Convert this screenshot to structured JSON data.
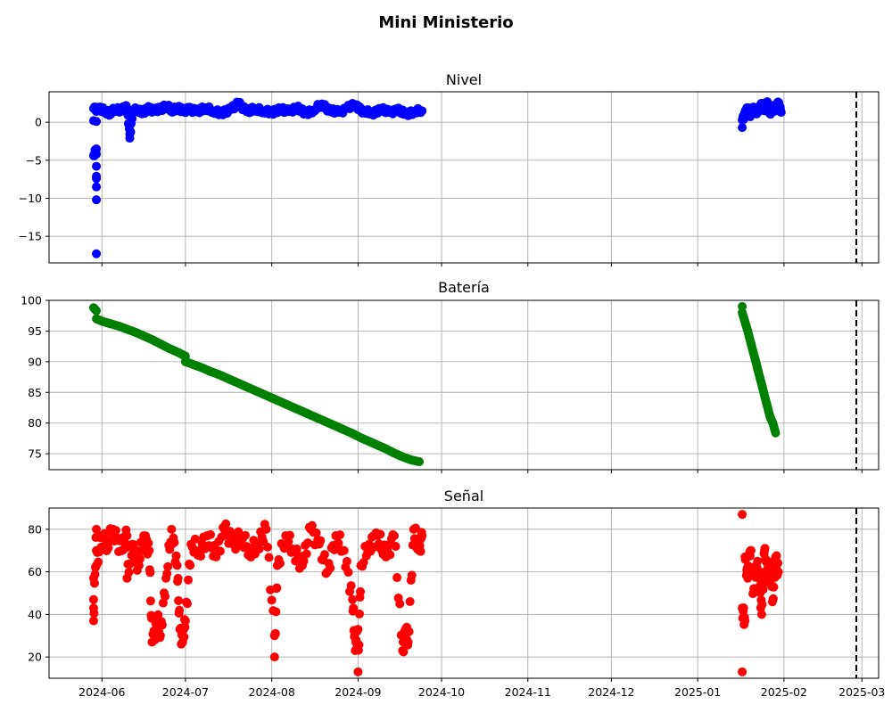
{
  "figure": {
    "title": "Mini Ministerio"
  },
  "chart_data": [
    {
      "type": "scatter",
      "title": "Nivel",
      "color": "#0000ff",
      "xlim": [
        "2024-05-13",
        "2025-03-07"
      ],
      "ylim": [
        -18.5,
        4.0
      ],
      "yticks": [
        0,
        -5,
        -10,
        -15
      ],
      "ytick_labels": [
        "0",
        "−5",
        "−10",
        "−15"
      ],
      "xticks": [
        "2024-06-01",
        "2024-07-01",
        "2024-08-01",
        "2024-09-01",
        "2024-10-01",
        "2024-11-01",
        "2024-12-01",
        "2025-01-01",
        "2025-02-01",
        "2025-03-01"
      ],
      "xtick_labels": [],
      "grid": true,
      "reference_line": {
        "x": "2025-02-27",
        "style": "dashed",
        "color": "#000000"
      },
      "points": [
        [
          "2024-05-29",
          0.2
        ],
        [
          "2024-05-29",
          -4.4
        ],
        [
          "2024-05-30",
          -3.5
        ],
        [
          "2024-05-30",
          -4.2
        ],
        [
          "2024-05-30",
          -5.8
        ],
        [
          "2024-05-30",
          -7.1
        ],
        [
          "2024-05-30",
          -7.4
        ],
        [
          "2024-05-30",
          -8.5
        ],
        [
          "2024-05-30",
          -10.2
        ],
        [
          "2024-05-30",
          -17.3
        ],
        [
          "2024-05-30",
          0.1
        ],
        [
          "2024-05-29",
          1.8
        ],
        [
          "2024-05-31",
          1.7
        ],
        [
          "2024-06-02",
          1.5
        ],
        [
          "2024-06-04",
          1.2
        ],
        [
          "2024-06-06",
          1.8
        ],
        [
          "2024-06-08",
          1.6
        ],
        [
          "2024-06-10",
          1.9
        ],
        [
          "2024-06-11",
          -1.6
        ],
        [
          "2024-06-11",
          -2.1
        ],
        [
          "2024-06-12",
          1.4
        ],
        [
          "2024-06-14",
          1.7
        ],
        [
          "2024-06-16",
          1.3
        ],
        [
          "2024-06-18",
          1.8
        ],
        [
          "2024-06-20",
          1.5
        ],
        [
          "2024-06-22",
          1.7
        ],
        [
          "2024-06-24",
          2.2
        ],
        [
          "2024-06-26",
          1.6
        ],
        [
          "2024-06-28",
          1.9
        ],
        [
          "2024-06-30",
          1.5
        ],
        [
          "2024-07-02",
          1.7
        ],
        [
          "2024-07-05",
          1.4
        ],
        [
          "2024-07-08",
          1.9
        ],
        [
          "2024-07-11",
          1.5
        ],
        [
          "2024-07-14",
          1.2
        ],
        [
          "2024-07-17",
          1.6
        ],
        [
          "2024-07-20",
          2.5
        ],
        [
          "2024-07-23",
          1.4
        ],
        [
          "2024-07-26",
          1.8
        ],
        [
          "2024-07-29",
          1.5
        ],
        [
          "2024-08-01",
          1.3
        ],
        [
          "2024-08-04",
          1.7
        ],
        [
          "2024-08-07",
          1.4
        ],
        [
          "2024-08-10",
          1.9
        ],
        [
          "2024-08-13",
          1.2
        ],
        [
          "2024-08-16",
          1.6
        ],
        [
          "2024-08-19",
          2.4
        ],
        [
          "2024-08-22",
          1.5
        ],
        [
          "2024-08-25",
          1.3
        ],
        [
          "2024-08-28",
          1.8
        ],
        [
          "2024-08-31",
          2.3
        ],
        [
          "2024-09-03",
          1.4
        ],
        [
          "2024-09-06",
          1.2
        ],
        [
          "2024-09-09",
          1.7
        ],
        [
          "2024-09-12",
          1.3
        ],
        [
          "2024-09-15",
          1.6
        ],
        [
          "2024-09-18",
          1.1
        ],
        [
          "2024-09-21",
          1.4
        ],
        [
          "2024-09-24",
          1.5
        ],
        [
          "2025-01-17",
          -0.7
        ],
        [
          "2025-01-17",
          0.3
        ],
        [
          "2025-01-18",
          1.1
        ],
        [
          "2025-01-19",
          1.8
        ],
        [
          "2025-01-20",
          0.9
        ],
        [
          "2025-01-21",
          2.0
        ],
        [
          "2025-01-22",
          1.3
        ],
        [
          "2025-01-23",
          1.7
        ],
        [
          "2025-01-24",
          2.3
        ],
        [
          "2025-01-25",
          1.5
        ],
        [
          "2025-01-26",
          2.7
        ],
        [
          "2025-01-27",
          1.2
        ],
        [
          "2025-01-28",
          2.1
        ],
        [
          "2025-01-29",
          1.6
        ],
        [
          "2025-01-30",
          2.5
        ],
        [
          "2025-01-31",
          1.3
        ]
      ]
    },
    {
      "type": "scatter",
      "title": "Batería",
      "color": "#008000",
      "xlim": [
        "2024-05-13",
        "2025-03-07"
      ],
      "ylim": [
        72.4,
        100.0
      ],
      "yticks": [
        100,
        95,
        90,
        85,
        80,
        75
      ],
      "ytick_labels": [
        "100",
        "95",
        "90",
        "85",
        "80",
        "75"
      ],
      "xticks": [
        "2024-06-01",
        "2024-07-01",
        "2024-08-01",
        "2024-09-01",
        "2024-10-01",
        "2024-11-01",
        "2024-12-01",
        "2025-01-01",
        "2025-02-01",
        "2025-03-01"
      ],
      "xtick_labels": [],
      "grid": true,
      "reference_line": {
        "x": "2025-02-27",
        "style": "dashed",
        "color": "#000000"
      },
      "points": [
        [
          "2024-05-29",
          98.8
        ],
        [
          "2024-05-30",
          98.3
        ],
        [
          "2024-05-30",
          97.0
        ],
        [
          "2024-06-01",
          96.6
        ],
        [
          "2024-06-04",
          96.2
        ],
        [
          "2024-06-07",
          95.8
        ],
        [
          "2024-06-10",
          95.3
        ],
        [
          "2024-06-13",
          94.8
        ],
        [
          "2024-06-16",
          94.2
        ],
        [
          "2024-06-19",
          93.6
        ],
        [
          "2024-06-22",
          92.9
        ],
        [
          "2024-06-25",
          92.2
        ],
        [
          "2024-06-28",
          91.6
        ],
        [
          "2024-07-01",
          90.9
        ],
        [
          "2024-07-01",
          90.0
        ],
        [
          "2024-07-04",
          89.5
        ],
        [
          "2024-07-07",
          89.0
        ],
        [
          "2024-07-10",
          88.4
        ],
        [
          "2024-07-13",
          87.9
        ],
        [
          "2024-07-16",
          87.3
        ],
        [
          "2024-07-19",
          86.7
        ],
        [
          "2024-07-22",
          86.1
        ],
        [
          "2024-07-25",
          85.5
        ],
        [
          "2024-07-28",
          84.9
        ],
        [
          "2024-07-31",
          84.3
        ],
        [
          "2024-08-03",
          83.7
        ],
        [
          "2024-08-06",
          83.1
        ],
        [
          "2024-08-09",
          82.5
        ],
        [
          "2024-08-12",
          81.9
        ],
        [
          "2024-08-15",
          81.3
        ],
        [
          "2024-08-18",
          80.7
        ],
        [
          "2024-08-21",
          80.1
        ],
        [
          "2024-08-24",
          79.5
        ],
        [
          "2024-08-27",
          78.9
        ],
        [
          "2024-08-30",
          78.3
        ],
        [
          "2024-09-02",
          77.6
        ],
        [
          "2024-09-05",
          77.0
        ],
        [
          "2024-09-08",
          76.4
        ],
        [
          "2024-09-11",
          75.8
        ],
        [
          "2024-09-14",
          75.1
        ],
        [
          "2024-09-17",
          74.5
        ],
        [
          "2024-09-20",
          74.0
        ],
        [
          "2024-09-23",
          73.7
        ],
        [
          "2025-01-17",
          99.0
        ],
        [
          "2025-01-17",
          98.0
        ],
        [
          "2025-01-18",
          96.5
        ],
        [
          "2025-01-19",
          95.0
        ],
        [
          "2025-01-20",
          93.2
        ],
        [
          "2025-01-21",
          91.5
        ],
        [
          "2025-01-22",
          89.8
        ],
        [
          "2025-01-23",
          88.0
        ],
        [
          "2025-01-24",
          86.3
        ],
        [
          "2025-01-25",
          84.5
        ],
        [
          "2025-01-26",
          82.8
        ],
        [
          "2025-01-27",
          81.0
        ],
        [
          "2025-01-28",
          80.0
        ],
        [
          "2025-01-29",
          78.4
        ]
      ]
    },
    {
      "type": "scatter",
      "title": "Señal",
      "color": "#ff0000",
      "xlim": [
        "2024-05-13",
        "2025-03-07"
      ],
      "ylim": [
        10.0,
        90.0
      ],
      "yticks": [
        80,
        60,
        40,
        20
      ],
      "ytick_labels": [
        "80",
        "60",
        "40",
        "20"
      ],
      "xticks": [
        "2024-06-01",
        "2024-07-01",
        "2024-08-01",
        "2024-09-01",
        "2024-10-01",
        "2024-11-01",
        "2024-12-01",
        "2025-01-01",
        "2025-02-01",
        "2025-03-01"
      ],
      "xtick_labels": [
        "2024-06",
        "2024-07",
        "2024-08",
        "2024-09",
        "2024-10",
        "2024-11",
        "2024-12",
        "2025-01",
        "2025-02",
        "2025-03"
      ],
      "grid": true,
      "reference_line": {
        "x": "2025-02-27",
        "style": "dashed",
        "color": "#000000"
      },
      "points": [
        [
          "2024-05-29",
          57
        ],
        [
          "2024-05-29",
          47
        ],
        [
          "2024-05-29",
          43
        ],
        [
          "2024-05-29",
          37
        ],
        [
          "2024-05-30",
          80
        ],
        [
          "2024-05-30",
          70
        ],
        [
          "2024-05-30",
          63
        ],
        [
          "2024-06-01",
          77
        ],
        [
          "2024-06-03",
          73
        ],
        [
          "2024-06-05",
          80
        ],
        [
          "2024-06-08",
          70
        ],
        [
          "2024-06-10",
          77
        ],
        [
          "2024-06-10",
          57
        ],
        [
          "2024-06-12",
          73
        ],
        [
          "2024-06-14",
          63
        ],
        [
          "2024-06-16",
          77
        ],
        [
          "2024-06-18",
          70
        ],
        [
          "2024-06-19",
          27
        ],
        [
          "2024-06-21",
          37
        ],
        [
          "2024-06-22",
          30
        ],
        [
          "2024-06-24",
          57
        ],
        [
          "2024-06-26",
          80
        ],
        [
          "2024-06-28",
          63
        ],
        [
          "2024-06-29",
          33
        ],
        [
          "2024-06-30",
          27
        ],
        [
          "2024-07-01",
          37
        ],
        [
          "2024-07-03",
          73
        ],
        [
          "2024-07-06",
          70
        ],
        [
          "2024-07-09",
          77
        ],
        [
          "2024-07-12",
          67
        ],
        [
          "2024-07-15",
          80
        ],
        [
          "2024-07-18",
          73
        ],
        [
          "2024-07-21",
          77
        ],
        [
          "2024-07-24",
          70
        ],
        [
          "2024-07-27",
          73
        ],
        [
          "2024-07-30",
          80
        ],
        [
          "2024-08-02",
          30
        ],
        [
          "2024-08-02",
          20
        ],
        [
          "2024-08-03",
          63
        ],
        [
          "2024-08-06",
          77
        ],
        [
          "2024-08-09",
          70
        ],
        [
          "2024-08-12",
          63
        ],
        [
          "2024-08-15",
          80
        ],
        [
          "2024-08-18",
          73
        ],
        [
          "2024-08-21",
          60
        ],
        [
          "2024-08-24",
          77
        ],
        [
          "2024-08-27",
          70
        ],
        [
          "2024-08-30",
          47
        ],
        [
          "2024-08-31",
          23
        ],
        [
          "2024-09-01",
          33
        ],
        [
          "2024-09-01",
          13
        ],
        [
          "2024-09-02",
          63
        ],
        [
          "2024-09-05",
          73
        ],
        [
          "2024-09-08",
          77
        ],
        [
          "2024-09-11",
          67
        ],
        [
          "2024-09-14",
          77
        ],
        [
          "2024-09-17",
          23
        ],
        [
          "2024-09-18",
          33
        ],
        [
          "2024-09-19",
          27
        ],
        [
          "2024-09-21",
          80
        ],
        [
          "2024-09-23",
          70
        ],
        [
          "2024-09-24",
          77
        ],
        [
          "2025-01-17",
          87
        ],
        [
          "2025-01-17",
          13
        ],
        [
          "2025-01-17",
          43
        ],
        [
          "2025-01-18",
          37
        ],
        [
          "2025-01-18",
          67
        ],
        [
          "2025-01-19",
          57
        ],
        [
          "2025-01-20",
          70
        ],
        [
          "2025-01-21",
          50
        ],
        [
          "2025-01-22",
          63
        ],
        [
          "2025-01-23",
          60
        ],
        [
          "2025-01-24",
          40
        ],
        [
          "2025-01-25",
          70
        ],
        [
          "2025-01-26",
          57
        ],
        [
          "2025-01-27",
          63
        ],
        [
          "2025-01-28",
          47
        ],
        [
          "2025-01-29",
          67
        ],
        [
          "2025-01-30",
          60
        ]
      ]
    }
  ]
}
